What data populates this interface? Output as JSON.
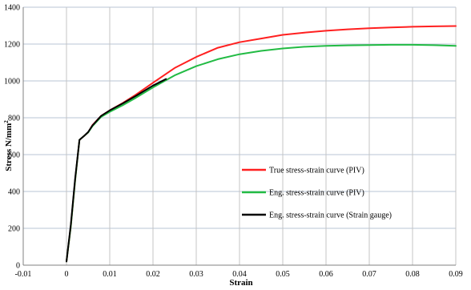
{
  "chart_data": {
    "type": "line",
    "title": "",
    "xlabel": "Strain",
    "ylabel": "Stress N/mm",
    "ylabel_superscript": "2",
    "xlim": [
      -0.01,
      0.09
    ],
    "ylim": [
      0,
      1400
    ],
    "xticks": [
      -0.01,
      0,
      0.01,
      0.02,
      0.03,
      0.04,
      0.05,
      0.06,
      0.07,
      0.08,
      0.09
    ],
    "xtick_labels": [
      "-0.01",
      "0",
      "0.01",
      "0.02",
      "0.03",
      "0.04",
      "0.05",
      "0.06",
      "0.07",
      "0.08",
      "0.09"
    ],
    "yticks": [
      0,
      200,
      400,
      600,
      800,
      1000,
      1200,
      1400
    ],
    "ytick_labels": [
      "0",
      "200",
      "400",
      "600",
      "800",
      "1000",
      "1200",
      "1400"
    ],
    "grid": "both",
    "legend_position": "lower-right",
    "series": [
      {
        "name": "True stress-strain curve (PIV)",
        "color": "#ff2020",
        "x": [
          0,
          0.001,
          0.002,
          0.003,
          0.004,
          0.005,
          0.006,
          0.008,
          0.01,
          0.013,
          0.016,
          0.02,
          0.025,
          0.03,
          0.035,
          0.04,
          0.045,
          0.05,
          0.055,
          0.06,
          0.065,
          0.07,
          0.075,
          0.08,
          0.085,
          0.09
        ],
        "y": [
          20,
          210,
          460,
          680,
          700,
          720,
          760,
          810,
          840,
          880,
          925,
          990,
          1070,
          1130,
          1180,
          1210,
          1230,
          1250,
          1262,
          1272,
          1280,
          1286,
          1290,
          1294,
          1296,
          1298
        ]
      },
      {
        "name": "Eng. stress-strain curve (PIV)",
        "color": "#22bb44",
        "x": [
          0,
          0.001,
          0.002,
          0.003,
          0.004,
          0.005,
          0.006,
          0.008,
          0.01,
          0.013,
          0.016,
          0.02,
          0.025,
          0.03,
          0.035,
          0.04,
          0.045,
          0.05,
          0.055,
          0.06,
          0.065,
          0.07,
          0.075,
          0.08,
          0.085,
          0.09
        ],
        "y": [
          20,
          210,
          460,
          680,
          700,
          720,
          755,
          805,
          832,
          868,
          908,
          965,
          1030,
          1080,
          1118,
          1145,
          1163,
          1176,
          1185,
          1190,
          1193,
          1195,
          1196,
          1196,
          1194,
          1190
        ]
      },
      {
        "name": "Eng. stress-strain curve (Strain gauge)",
        "color": "#000000",
        "x": [
          0,
          0.001,
          0.002,
          0.003,
          0.004,
          0.005,
          0.006,
          0.008,
          0.01,
          0.013,
          0.016,
          0.02,
          0.023
        ],
        "y": [
          20,
          220,
          470,
          680,
          700,
          722,
          758,
          810,
          840,
          878,
          918,
          975,
          1010
        ]
      }
    ]
  }
}
